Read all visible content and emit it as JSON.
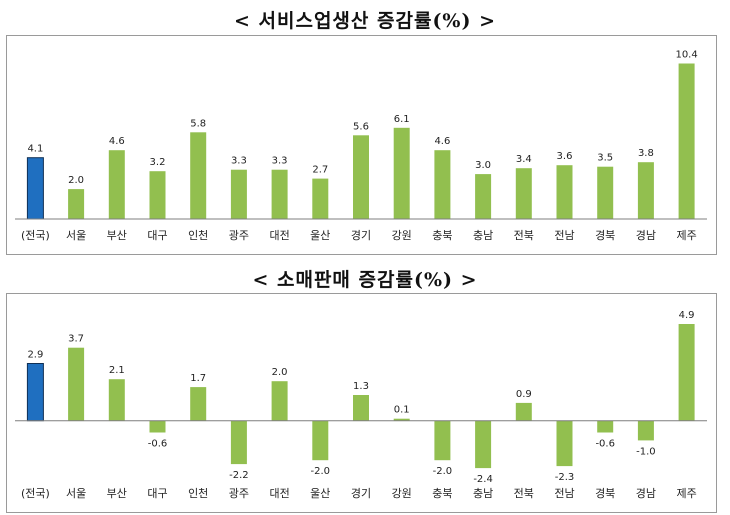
{
  "colors": {
    "highlight": "#1F6FC0",
    "highlight_stroke": "#0f2f55",
    "bar": "#92BF4F",
    "axis": "#7f7f7f"
  },
  "chart_data": [
    {
      "type": "bar",
      "title": "< 서비스업생산 증감률(%) >",
      "categories": [
        "(전국)",
        "서울",
        "부산",
        "대구",
        "인천",
        "광주",
        "대전",
        "울산",
        "경기",
        "강원",
        "충북",
        "충남",
        "전북",
        "전남",
        "경북",
        "경남",
        "제주"
      ],
      "values": [
        4.1,
        2.0,
        4.6,
        3.2,
        5.8,
        3.3,
        3.3,
        2.7,
        5.6,
        6.1,
        4.6,
        3.0,
        3.4,
        3.6,
        3.5,
        3.8,
        10.4
      ],
      "value_labels": [
        "4.1",
        "2.0",
        "4.6",
        "3.2",
        "5.8",
        "3.3",
        "3.3",
        "2.7",
        "5.6",
        "6.1",
        "4.6",
        "3.0",
        "3.4",
        "3.6",
        "3.5",
        "3.8",
        "10.4"
      ],
      "highlight_index": 0,
      "ylim": [
        0,
        10.5
      ],
      "grid": false,
      "legend": "none"
    },
    {
      "type": "bar",
      "title": "< 소매판매 증감률(%) >",
      "categories": [
        "(전국)",
        "서울",
        "부산",
        "대구",
        "인천",
        "광주",
        "대전",
        "울산",
        "경기",
        "강원",
        "충북",
        "충남",
        "전북",
        "전남",
        "경북",
        "경남",
        "제주"
      ],
      "values": [
        2.9,
        3.7,
        2.1,
        -0.6,
        1.7,
        -2.2,
        2.0,
        -2.0,
        1.3,
        0.1,
        -2.0,
        -2.4,
        0.9,
        -2.3,
        -0.6,
        -1.0,
        4.9
      ],
      "value_labels": [
        "2.9",
        "3.7",
        "2.1",
        "-0.6",
        "1.7",
        "-2.2",
        "2.0",
        "-2.0",
        "1.3",
        "0.1",
        "-2.0",
        "-2.4",
        "0.9",
        "-2.3",
        "-0.6",
        "-1.0",
        "4.9"
      ],
      "highlight_index": 0,
      "ylim": [
        -2.7,
        5.0
      ],
      "grid": false,
      "legend": "none"
    }
  ]
}
